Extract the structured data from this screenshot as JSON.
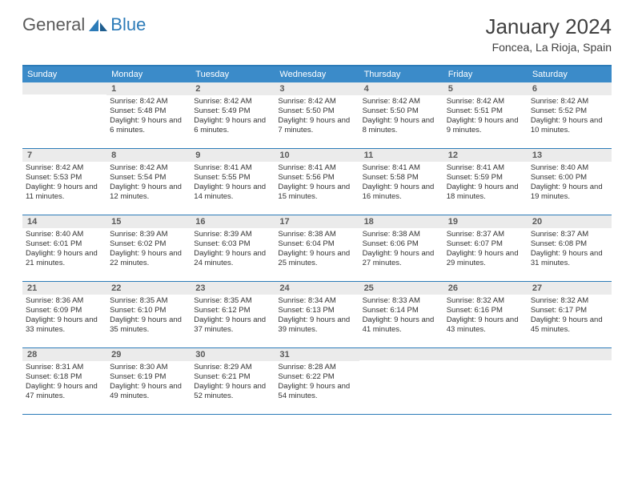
{
  "logo": {
    "text1": "General",
    "text2": "Blue"
  },
  "title": "January 2024",
  "location": "Foncea, La Rioja, Spain",
  "colors": {
    "header_bar": "#3b8bc9",
    "border": "#2c7bb8",
    "daynum_bg": "#ebebeb",
    "text": "#333333"
  },
  "weekdays": [
    "Sunday",
    "Monday",
    "Tuesday",
    "Wednesday",
    "Thursday",
    "Friday",
    "Saturday"
  ],
  "weeks": [
    [
      {
        "n": "",
        "sr": "",
        "ss": "",
        "dl": ""
      },
      {
        "n": "1",
        "sr": "8:42 AM",
        "ss": "5:48 PM",
        "dl": "9 hours and 6 minutes."
      },
      {
        "n": "2",
        "sr": "8:42 AM",
        "ss": "5:49 PM",
        "dl": "9 hours and 6 minutes."
      },
      {
        "n": "3",
        "sr": "8:42 AM",
        "ss": "5:50 PM",
        "dl": "9 hours and 7 minutes."
      },
      {
        "n": "4",
        "sr": "8:42 AM",
        "ss": "5:50 PM",
        "dl": "9 hours and 8 minutes."
      },
      {
        "n": "5",
        "sr": "8:42 AM",
        "ss": "5:51 PM",
        "dl": "9 hours and 9 minutes."
      },
      {
        "n": "6",
        "sr": "8:42 AM",
        "ss": "5:52 PM",
        "dl": "9 hours and 10 minutes."
      }
    ],
    [
      {
        "n": "7",
        "sr": "8:42 AM",
        "ss": "5:53 PM",
        "dl": "9 hours and 11 minutes."
      },
      {
        "n": "8",
        "sr": "8:42 AM",
        "ss": "5:54 PM",
        "dl": "9 hours and 12 minutes."
      },
      {
        "n": "9",
        "sr": "8:41 AM",
        "ss": "5:55 PM",
        "dl": "9 hours and 14 minutes."
      },
      {
        "n": "10",
        "sr": "8:41 AM",
        "ss": "5:56 PM",
        "dl": "9 hours and 15 minutes."
      },
      {
        "n": "11",
        "sr": "8:41 AM",
        "ss": "5:58 PM",
        "dl": "9 hours and 16 minutes."
      },
      {
        "n": "12",
        "sr": "8:41 AM",
        "ss": "5:59 PM",
        "dl": "9 hours and 18 minutes."
      },
      {
        "n": "13",
        "sr": "8:40 AM",
        "ss": "6:00 PM",
        "dl": "9 hours and 19 minutes."
      }
    ],
    [
      {
        "n": "14",
        "sr": "8:40 AM",
        "ss": "6:01 PM",
        "dl": "9 hours and 21 minutes."
      },
      {
        "n": "15",
        "sr": "8:39 AM",
        "ss": "6:02 PM",
        "dl": "9 hours and 22 minutes."
      },
      {
        "n": "16",
        "sr": "8:39 AM",
        "ss": "6:03 PM",
        "dl": "9 hours and 24 minutes."
      },
      {
        "n": "17",
        "sr": "8:38 AM",
        "ss": "6:04 PM",
        "dl": "9 hours and 25 minutes."
      },
      {
        "n": "18",
        "sr": "8:38 AM",
        "ss": "6:06 PM",
        "dl": "9 hours and 27 minutes."
      },
      {
        "n": "19",
        "sr": "8:37 AM",
        "ss": "6:07 PM",
        "dl": "9 hours and 29 minutes."
      },
      {
        "n": "20",
        "sr": "8:37 AM",
        "ss": "6:08 PM",
        "dl": "9 hours and 31 minutes."
      }
    ],
    [
      {
        "n": "21",
        "sr": "8:36 AM",
        "ss": "6:09 PM",
        "dl": "9 hours and 33 minutes."
      },
      {
        "n": "22",
        "sr": "8:35 AM",
        "ss": "6:10 PM",
        "dl": "9 hours and 35 minutes."
      },
      {
        "n": "23",
        "sr": "8:35 AM",
        "ss": "6:12 PM",
        "dl": "9 hours and 37 minutes."
      },
      {
        "n": "24",
        "sr": "8:34 AM",
        "ss": "6:13 PM",
        "dl": "9 hours and 39 minutes."
      },
      {
        "n": "25",
        "sr": "8:33 AM",
        "ss": "6:14 PM",
        "dl": "9 hours and 41 minutes."
      },
      {
        "n": "26",
        "sr": "8:32 AM",
        "ss": "6:16 PM",
        "dl": "9 hours and 43 minutes."
      },
      {
        "n": "27",
        "sr": "8:32 AM",
        "ss": "6:17 PM",
        "dl": "9 hours and 45 minutes."
      }
    ],
    [
      {
        "n": "28",
        "sr": "8:31 AM",
        "ss": "6:18 PM",
        "dl": "9 hours and 47 minutes."
      },
      {
        "n": "29",
        "sr": "8:30 AM",
        "ss": "6:19 PM",
        "dl": "9 hours and 49 minutes."
      },
      {
        "n": "30",
        "sr": "8:29 AM",
        "ss": "6:21 PM",
        "dl": "9 hours and 52 minutes."
      },
      {
        "n": "31",
        "sr": "8:28 AM",
        "ss": "6:22 PM",
        "dl": "9 hours and 54 minutes."
      },
      {
        "n": "",
        "sr": "",
        "ss": "",
        "dl": ""
      },
      {
        "n": "",
        "sr": "",
        "ss": "",
        "dl": ""
      },
      {
        "n": "",
        "sr": "",
        "ss": "",
        "dl": ""
      }
    ]
  ],
  "labels": {
    "sunrise": "Sunrise:",
    "sunset": "Sunset:",
    "daylight": "Daylight:"
  }
}
